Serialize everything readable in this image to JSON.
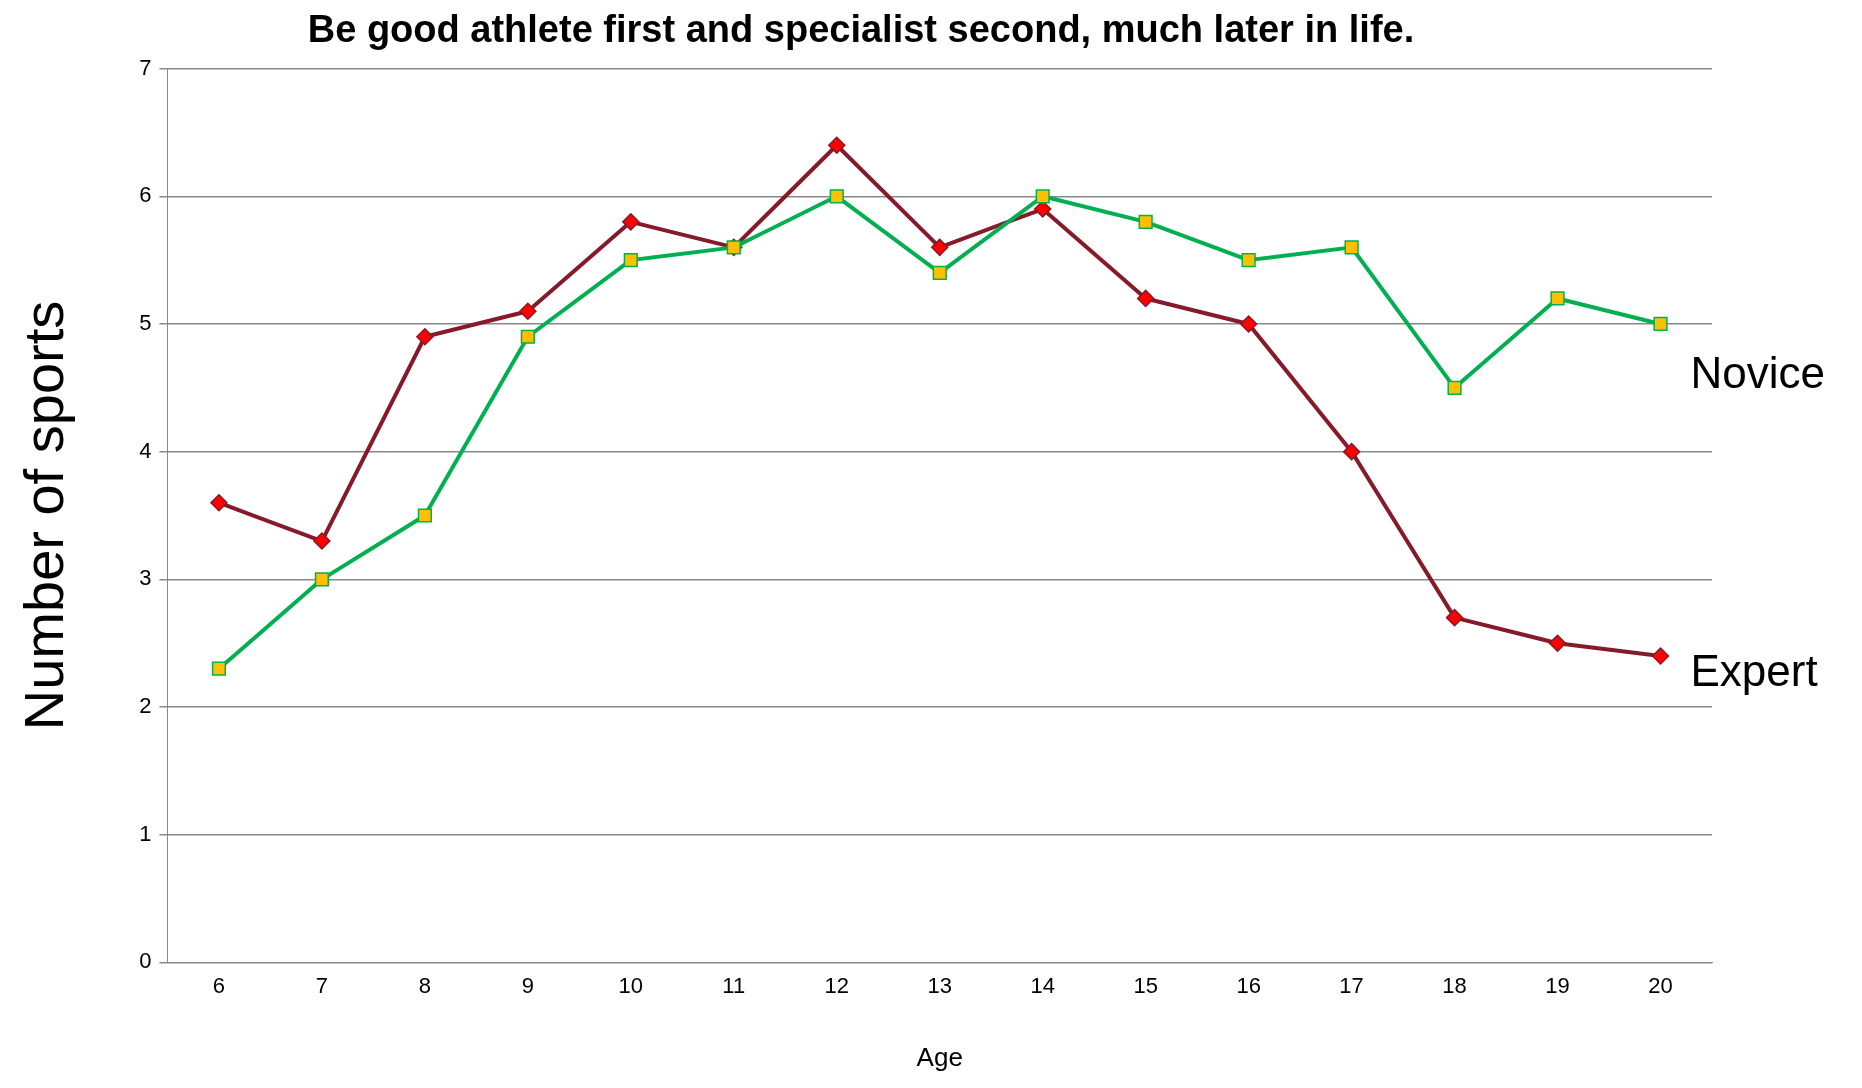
{
  "chart_data": {
    "type": "line",
    "title": "Be good athlete first and specialist second, much later in life.",
    "xlabel": "Age",
    "ylabel": "Number of sports",
    "categories": [
      "6",
      "7",
      "8",
      "9",
      "10",
      "11",
      "12",
      "13",
      "14",
      "15",
      "16",
      "17",
      "18",
      "19",
      "20"
    ],
    "series": [
      {
        "name": "Expert",
        "color": "#861a28",
        "marker": "diamond",
        "values": [
          3.6,
          3.3,
          4.9,
          5.1,
          5.8,
          5.6,
          6.4,
          5.6,
          5.9,
          5.2,
          5.0,
          4.0,
          2.7,
          2.5,
          2.4
        ]
      },
      {
        "name": "Novice",
        "color": "#00b050",
        "marker": "square",
        "values": [
          2.3,
          3.0,
          3.5,
          4.9,
          5.5,
          5.6,
          6.0,
          5.4,
          6.0,
          5.8,
          5.5,
          5.6,
          4.5,
          5.2,
          5.0
        ]
      }
    ],
    "ylim": [
      0,
      7
    ],
    "yticks": [
      0,
      1,
      2,
      3,
      4,
      5,
      6,
      7
    ],
    "grid": "y",
    "legend": false,
    "line_style": "solid"
  }
}
